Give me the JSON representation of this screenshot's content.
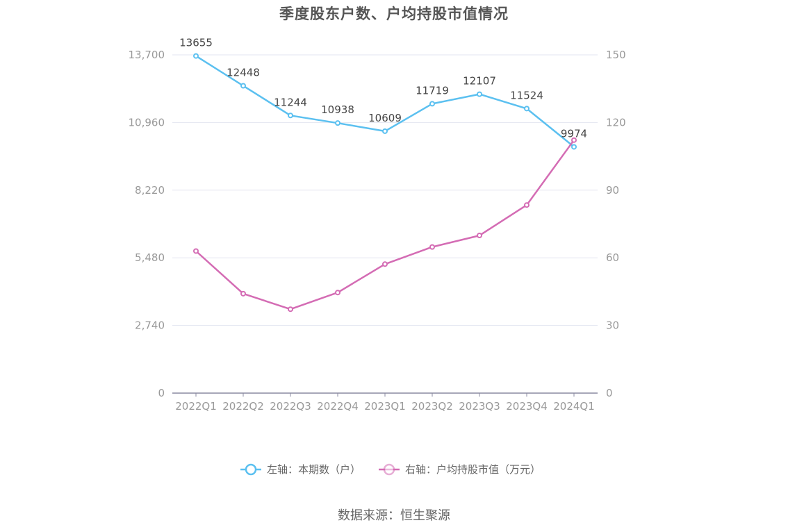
{
  "chart_data": {
    "type": "line",
    "title": "季度股东户数、户均持股市值情况",
    "categories": [
      "2022Q1",
      "2022Q2",
      "2022Q3",
      "2022Q4",
      "2023Q1",
      "2023Q2",
      "2023Q3",
      "2023Q4",
      "2024Q1"
    ],
    "left_axis": {
      "ylim": [
        0,
        13700
      ],
      "ticks": [
        0,
        2740,
        5480,
        8220,
        10960,
        13700
      ],
      "tick_labels": [
        "0",
        "2,740",
        "5,480",
        "8,220",
        "10,960",
        "13,700"
      ]
    },
    "right_axis": {
      "ylim": [
        0,
        150
      ],
      "ticks": [
        0,
        30,
        60,
        90,
        120,
        150
      ],
      "tick_labels": [
        "0",
        "30",
        "60",
        "90",
        "120",
        "150"
      ]
    },
    "series": [
      {
        "name": "左轴：本期数（户）",
        "axis": "left",
        "color": "#5bc0f0",
        "values": [
          13655,
          12448,
          11244,
          10938,
          10609,
          11719,
          12107,
          11524,
          9974
        ],
        "labels": [
          "13655",
          "12448",
          "11244",
          "10938",
          "10609",
          "11719",
          "12107",
          "11524",
          "9974"
        ]
      },
      {
        "name": "右轴：户均持股市值（万元）",
        "axis": "right",
        "color": "#d46cb4",
        "values": [
          63.0,
          44.1,
          37.2,
          44.6,
          57.2,
          64.8,
          69.9,
          83.4,
          112.2
        ]
      }
    ],
    "grid": true,
    "legend_position": "bottom"
  },
  "source": "数据来源：恒生聚源"
}
